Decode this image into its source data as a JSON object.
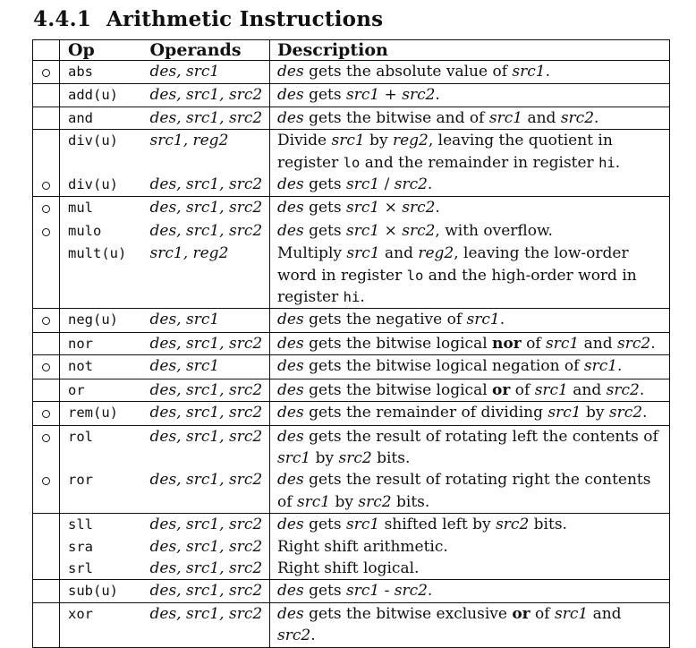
{
  "heading": {
    "number": "4.4.1",
    "title": "Arithmetic Instructions"
  },
  "table": {
    "headers": {
      "op": "Op",
      "operands": "Operands",
      "description": "Description"
    },
    "rows": [
      {
        "marker": true,
        "op": "abs",
        "operands": "des, src1",
        "desc": [
          [
            "i",
            "des"
          ],
          [
            "t",
            " gets the absolute value of "
          ],
          [
            "i",
            "src1"
          ],
          [
            "t",
            "."
          ]
        ]
      },
      {
        "marker": false,
        "op": "add(u)",
        "operands": "des, src1, src2",
        "desc": [
          [
            "i",
            "des"
          ],
          [
            "t",
            " gets "
          ],
          [
            "i",
            "src1"
          ],
          [
            "t",
            " + "
          ],
          [
            "i",
            "src2"
          ],
          [
            "t",
            "."
          ]
        ]
      },
      {
        "marker": false,
        "op": "and",
        "operands": "des, src1, src2",
        "desc": [
          [
            "i",
            "des"
          ],
          [
            "t",
            " gets the bitwise and of "
          ],
          [
            "i",
            "src1"
          ],
          [
            "t",
            " and "
          ],
          [
            "i",
            "src2"
          ],
          [
            "t",
            "."
          ]
        ]
      },
      {
        "marker": false,
        "op": "div(u)",
        "operands": "src1, reg2",
        "desc": [
          [
            "t",
            "Divide "
          ],
          [
            "i",
            "src1"
          ],
          [
            "t",
            " by "
          ],
          [
            "i",
            "reg2"
          ],
          [
            "t",
            ", leaving the quotient in register "
          ],
          [
            "m",
            "lo"
          ],
          [
            "t",
            " and the remainder in register "
          ],
          [
            "m",
            "hi"
          ],
          [
            "t",
            "."
          ]
        ]
      },
      {
        "marker": true,
        "op": "div(u)",
        "operands": "des, src1, src2",
        "desc": [
          [
            "i",
            "des"
          ],
          [
            "t",
            " gets "
          ],
          [
            "i",
            "src1"
          ],
          [
            "t",
            " / "
          ],
          [
            "i",
            "src2"
          ],
          [
            "t",
            "."
          ]
        ]
      },
      {
        "marker": true,
        "op": "mul",
        "operands": "des, src1, src2",
        "desc": [
          [
            "i",
            "des"
          ],
          [
            "t",
            " gets "
          ],
          [
            "i",
            "src1"
          ],
          [
            "t",
            " × "
          ],
          [
            "i",
            "src2"
          ],
          [
            "t",
            "."
          ]
        ]
      },
      {
        "marker": true,
        "op": "mulo",
        "operands": "des, src1, src2",
        "desc": [
          [
            "i",
            "des"
          ],
          [
            "t",
            " gets "
          ],
          [
            "i",
            "src1"
          ],
          [
            "t",
            " × "
          ],
          [
            "i",
            "src2"
          ],
          [
            "t",
            ", with overflow."
          ]
        ]
      },
      {
        "marker": false,
        "op": "mult(u)",
        "operands": "src1, reg2",
        "desc": [
          [
            "t",
            "Multiply "
          ],
          [
            "i",
            "src1"
          ],
          [
            "t",
            " and "
          ],
          [
            "i",
            "reg2"
          ],
          [
            "t",
            ", leaving the low-order word in register "
          ],
          [
            "m",
            "lo"
          ],
          [
            "t",
            " and the high-order word in register "
          ],
          [
            "m",
            "hi"
          ],
          [
            "t",
            "."
          ]
        ]
      },
      {
        "marker": true,
        "op": "neg(u)",
        "operands": "des, src1",
        "desc": [
          [
            "i",
            "des"
          ],
          [
            "t",
            " gets the negative of "
          ],
          [
            "i",
            "src1"
          ],
          [
            "t",
            "."
          ]
        ]
      },
      {
        "marker": false,
        "op": "nor",
        "operands": "des, src1, src2",
        "desc": [
          [
            "i",
            "des"
          ],
          [
            "t",
            " gets the bitwise logical "
          ],
          [
            "b",
            "nor"
          ],
          [
            "t",
            " of "
          ],
          [
            "i",
            "src1"
          ],
          [
            "t",
            " and "
          ],
          [
            "i",
            "src2"
          ],
          [
            "t",
            "."
          ]
        ]
      },
      {
        "marker": true,
        "op": "not",
        "operands": "des, src1",
        "desc": [
          [
            "i",
            "des"
          ],
          [
            "t",
            " gets the bitwise logical negation of "
          ],
          [
            "i",
            "src1"
          ],
          [
            "t",
            "."
          ]
        ]
      },
      {
        "marker": false,
        "op": "or",
        "operands": "des, src1, src2",
        "desc": [
          [
            "i",
            "des"
          ],
          [
            "t",
            " gets the bitwise logical "
          ],
          [
            "b",
            "or"
          ],
          [
            "t",
            " of "
          ],
          [
            "i",
            "src1"
          ],
          [
            "t",
            " and "
          ],
          [
            "i",
            "src2"
          ],
          [
            "t",
            "."
          ]
        ]
      },
      {
        "marker": true,
        "op": "rem(u)",
        "operands": "des, src1, src2",
        "desc": [
          [
            "i",
            "des"
          ],
          [
            "t",
            " gets the remainder of dividing "
          ],
          [
            "i",
            "src1"
          ],
          [
            "t",
            " by "
          ],
          [
            "i",
            "src2"
          ],
          [
            "t",
            "."
          ]
        ]
      },
      {
        "marker": true,
        "op": "rol",
        "operands": "des, src1, src2",
        "desc": [
          [
            "i",
            "des"
          ],
          [
            "t",
            " gets the result of rotating left the contents of "
          ],
          [
            "i",
            "src1"
          ],
          [
            "t",
            " by "
          ],
          [
            "i",
            "src2"
          ],
          [
            "t",
            " bits."
          ]
        ]
      },
      {
        "marker": true,
        "op": "ror",
        "operands": "des, src1, src2",
        "desc": [
          [
            "i",
            "des"
          ],
          [
            "t",
            " gets the result of rotating right the contents of "
          ],
          [
            "i",
            "src1"
          ],
          [
            "t",
            " by "
          ],
          [
            "i",
            "src2"
          ],
          [
            "t",
            " bits."
          ]
        ]
      },
      {
        "marker": false,
        "op": "sll",
        "operands": "des, src1, src2",
        "desc": [
          [
            "i",
            "des"
          ],
          [
            "t",
            " gets "
          ],
          [
            "i",
            "src1"
          ],
          [
            "t",
            " shifted left by "
          ],
          [
            "i",
            "src2"
          ],
          [
            "t",
            " bits."
          ]
        ]
      },
      {
        "marker": false,
        "op": "sra",
        "operands": "des, src1, src2",
        "desc": [
          [
            "t",
            "Right shift arithmetic."
          ]
        ]
      },
      {
        "marker": false,
        "op": "srl",
        "operands": "des, src1, src2",
        "desc": [
          [
            "t",
            "Right shift logical."
          ]
        ]
      },
      {
        "marker": false,
        "op": "sub(u)",
        "operands": "des, src1, src2",
        "desc": [
          [
            "i",
            "des"
          ],
          [
            "t",
            " gets "
          ],
          [
            "i",
            "src1"
          ],
          [
            "t",
            " - "
          ],
          [
            "i",
            "src2"
          ],
          [
            "t",
            "."
          ]
        ]
      },
      {
        "marker": false,
        "op": "xor",
        "operands": "des, src1, src2",
        "desc": [
          [
            "i",
            "des"
          ],
          [
            "t",
            " gets the bitwise exclusive "
          ],
          [
            "b",
            "or"
          ],
          [
            "t",
            " of "
          ],
          [
            "i",
            "src1"
          ],
          [
            "t",
            " and "
          ],
          [
            "i",
            "src2"
          ],
          [
            "t",
            "."
          ]
        ]
      }
    ]
  }
}
